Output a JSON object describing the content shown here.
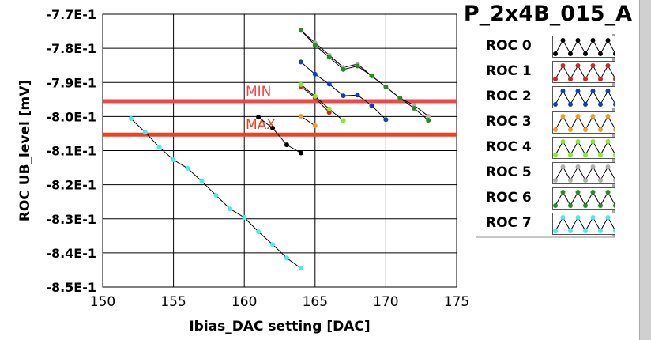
{
  "title": "P_2x4B_015_A",
  "chart_data": {
    "type": "line",
    "title": "P_2x4B_015_A",
    "xlabel": "Ibias_DAC setting [DAC]",
    "ylabel": "ROC UB_level [mV]",
    "xlim": [
      150,
      175
    ],
    "ylim": [
      -0.85,
      -0.77
    ],
    "xticks": [
      "150",
      "155",
      "160",
      "165",
      "170",
      "175"
    ],
    "yticks": [
      "-7.7E-1",
      "-7.8E-1",
      "-7.9E-1",
      "-8.0E-1",
      "-8.1E-1",
      "-8.2E-1",
      "-8.3E-1",
      "-8.4E-1",
      "-8.5E-1"
    ],
    "grid": true,
    "legend_placement": "right",
    "hlines": [
      {
        "label": "MIN",
        "y": -0.7955,
        "color": "#f04848"
      },
      {
        "label": "MAX",
        "y": -0.8053,
        "color": "#f04020"
      }
    ],
    "series": [
      {
        "name": "ROC 0",
        "color": "#000000",
        "x": [
          161,
          162,
          163,
          164
        ],
        "y": [
          -0.8002,
          -0.8034,
          -0.8083,
          -0.8107
        ]
      },
      {
        "name": "ROC 1",
        "color": "#e02020",
        "x": [
          164,
          165,
          166
        ],
        "y": [
          -0.7912,
          -0.7945,
          -0.7988
        ]
      },
      {
        "name": "ROC 2",
        "color": "#1040c0",
        "x": [
          164,
          165,
          166,
          167,
          168,
          169,
          170
        ],
        "y": [
          -0.784,
          -0.7876,
          -0.7905,
          -0.7939,
          -0.7937,
          -0.7968,
          -0.8009
        ]
      },
      {
        "name": "ROC 3",
        "color": "#f0a020",
        "x": [
          164,
          165
        ],
        "y": [
          -0.7999,
          -0.8027
        ]
      },
      {
        "name": "ROC 4",
        "color": "#80f020",
        "x": [
          164,
          165,
          166,
          167
        ],
        "y": [
          -0.7906,
          -0.7941,
          -0.7978,
          -0.8012
        ]
      },
      {
        "name": "ROC 5",
        "color": "#b0b0b0",
        "x": [
          164,
          165,
          166,
          167,
          168,
          169,
          170,
          171,
          172,
          173
        ],
        "y": [
          -0.7747,
          -0.7784,
          -0.782,
          -0.7856,
          -0.7846,
          -0.7881,
          -0.7913,
          -0.7946,
          -0.7967,
          -0.7999
        ]
      },
      {
        "name": "ROC 6",
        "color": "#209020",
        "x": [
          164,
          165,
          166,
          167,
          168,
          169,
          170,
          171,
          172,
          173
        ],
        "y": [
          -0.7747,
          -0.7791,
          -0.7826,
          -0.7862,
          -0.7852,
          -0.7881,
          -0.7913,
          -0.7946,
          -0.7976,
          -0.8011
        ]
      },
      {
        "name": "ROC 7",
        "color": "#40f0f0",
        "x": [
          152,
          153,
          154,
          155,
          156,
          157,
          158,
          159,
          160,
          161,
          162,
          163,
          164
        ],
        "y": [
          -0.8006,
          -0.8046,
          -0.809,
          -0.8127,
          -0.8152,
          -0.819,
          -0.8231,
          -0.8271,
          -0.8296,
          -0.8338,
          -0.8375,
          -0.8415,
          -0.8445
        ]
      }
    ]
  }
}
